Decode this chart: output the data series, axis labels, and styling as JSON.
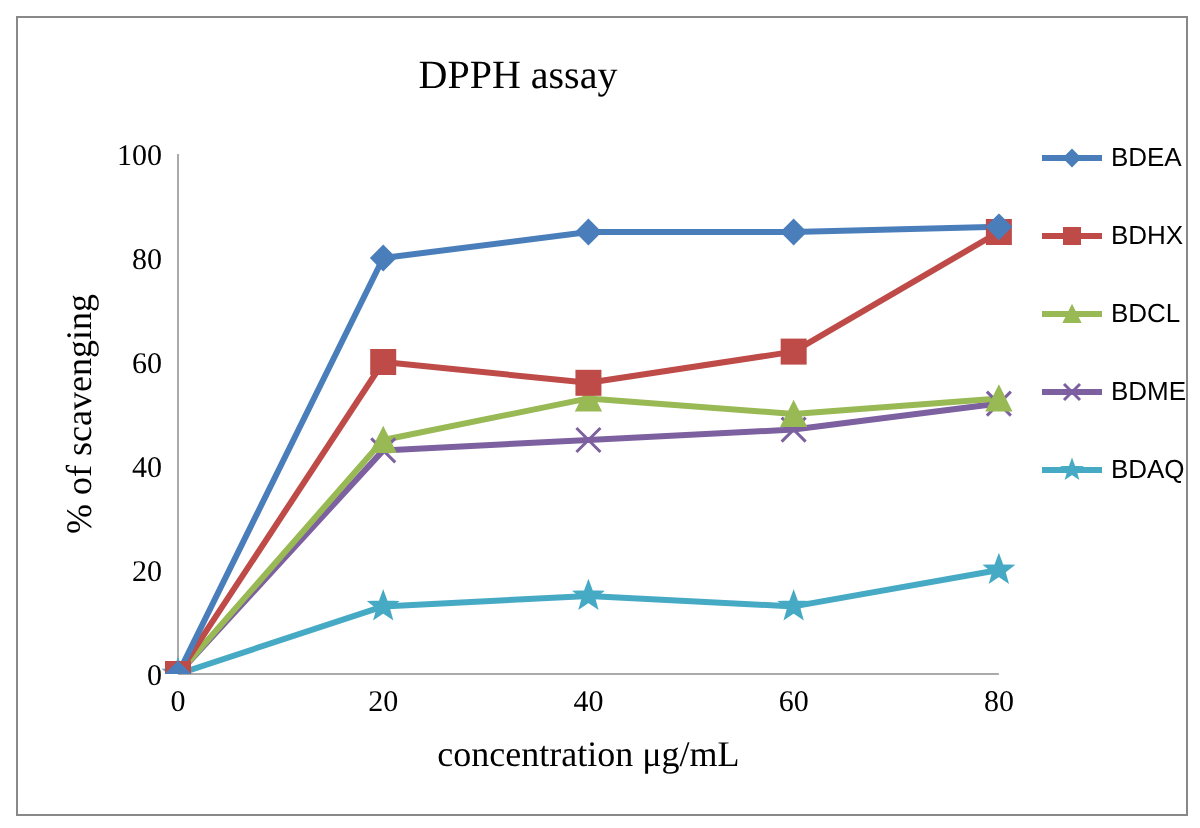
{
  "chart_data": {
    "type": "line",
    "title": "DPPH assay",
    "xlabel": "concentration μg/mL",
    "ylabel": "% of scavenging",
    "categories": [
      "0",
      "20",
      "40",
      "60",
      "80"
    ],
    "series": [
      {
        "name": "BDEA",
        "color": "#4a7ebb",
        "marker": "diamond",
        "values": [
          0,
          80,
          85,
          85,
          86
        ]
      },
      {
        "name": "BDHX",
        "color": "#be4b48",
        "marker": "square",
        "values": [
          0,
          60,
          56,
          62,
          85
        ]
      },
      {
        "name": "BDCL",
        "color": "#98b954",
        "marker": "triangle",
        "values": [
          0,
          45,
          53,
          50,
          53
        ]
      },
      {
        "name": "BDME",
        "color": "#7d60a0",
        "marker": "cross",
        "values": [
          0,
          43,
          45,
          47,
          52
        ]
      },
      {
        "name": "BDAQ",
        "color": "#46aac5",
        "marker": "star",
        "values": [
          0,
          13,
          15,
          13,
          20
        ]
      }
    ],
    "ylim": [
      0,
      100
    ],
    "yticks": [
      0,
      20,
      40,
      60,
      80,
      100
    ],
    "grid": false,
    "legend": "right"
  }
}
